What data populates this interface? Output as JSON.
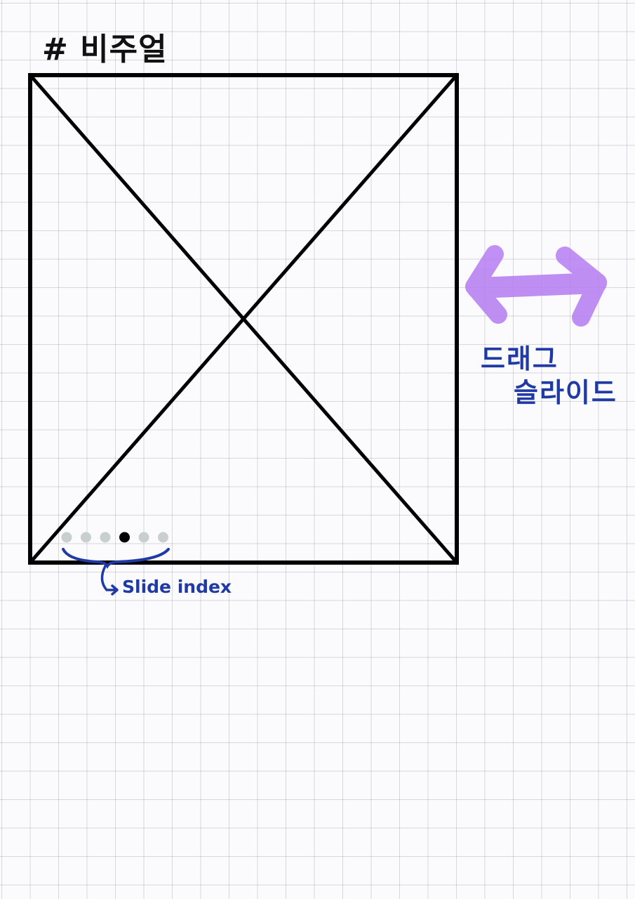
{
  "title": "# 비주얼",
  "drag_annotation": {
    "line1": "드래그",
    "line2": "슬라이드",
    "arrow_color": "#b57cf2",
    "icon": "double-arrow-icon"
  },
  "slide_index": {
    "label": "Slide index",
    "total_dots": 6,
    "active_index": 3,
    "active_color": "#000000",
    "inactive_color": "#c9cfd0",
    "annotation_color": "#1f3aa5"
  },
  "placeholder": {
    "type": "image-placeholder-x",
    "stroke_color": "#000000"
  }
}
